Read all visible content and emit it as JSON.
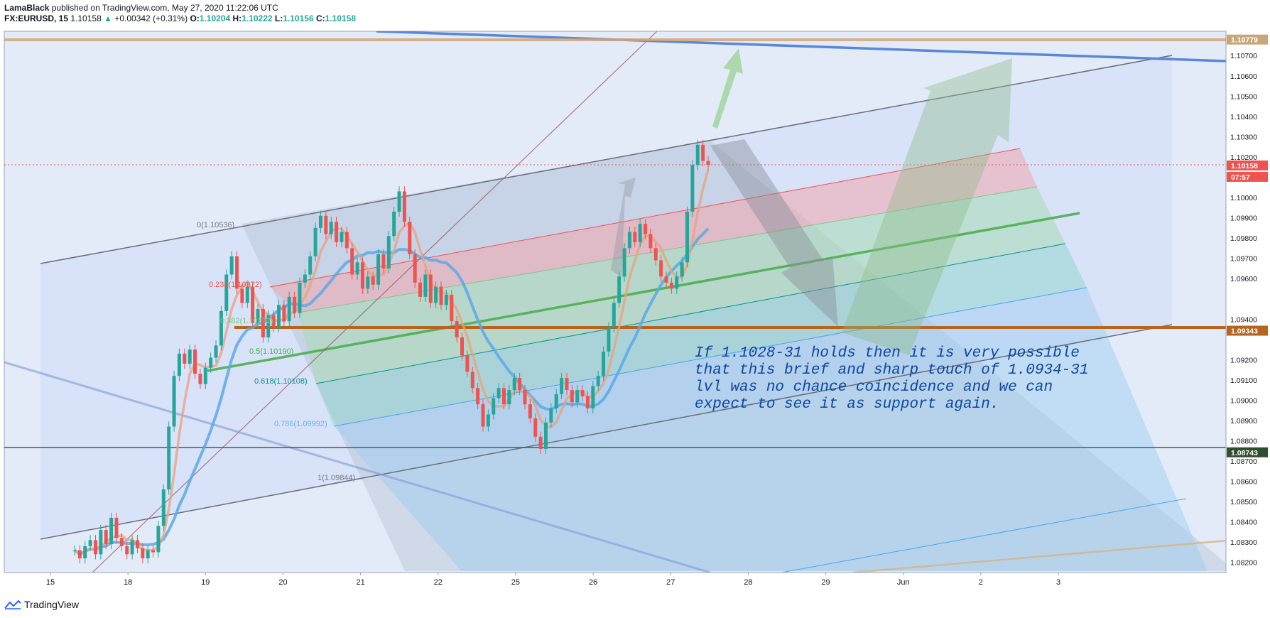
{
  "header": {
    "publisher": "LamaBlack",
    "published_text": "published on TradingView.com, May 27, 2020 11:22:06 UTC",
    "symbol": "FX:EURUSD, 15",
    "last": "1.10158",
    "arrow": "▲",
    "change": "+0.00342 (+0.31%)",
    "o_label": "O:",
    "o_value": "1.10204",
    "h_label": "H:",
    "h_value": "1.10222",
    "l_label": "L:",
    "l_value": "1.10156",
    "c_label": "C:",
    "c_value": "1.10158"
  },
  "footer": {
    "brand": "TradingView"
  },
  "annotation": {
    "lines": [
      "If 1.1028-31 holds then it is very possible",
      "that this brief and sharp touch of 1.0934-31",
      "lvl was no chance coincidence  and we can",
      "expect to see it as support again."
    ]
  },
  "colors": {
    "background": "#e3ebf8",
    "up_candle": "#26a69a",
    "down_candle": "#ef5350",
    "support_line": "#b5651d",
    "lower_line": "#4a6b4a",
    "top_line": "#d2a679",
    "price_label": "#ef5350",
    "annotation_text": "#0d47a1"
  },
  "chart_data": {
    "type": "candlestick",
    "symbol": "EURUSD",
    "timeframe": "15",
    "x_ticks": [
      "15",
      "18",
      "19",
      "20",
      "21",
      "22",
      "25",
      "26",
      "27",
      "28",
      "29",
      "Jun",
      "2",
      "3"
    ],
    "y_ticks": [
      "1.10700",
      "1.10600",
      "1.10500",
      "1.10400",
      "1.10300",
      "1.10200",
      "1.10000",
      "1.09900",
      "1.09800",
      "1.09700",
      "1.09600",
      "1.09400",
      "1.09200",
      "1.09100",
      "1.09000",
      "1.08900",
      "1.08800",
      "1.08700",
      "1.08600",
      "1.08500",
      "1.08400",
      "1.08300",
      "1.08200"
    ],
    "ylim": [
      1.0815,
      1.1082
    ],
    "price_labels": [
      {
        "value": "1.10779",
        "color": "#c9a57a"
      },
      {
        "value": "1.10158",
        "color": "#ef5350"
      },
      {
        "value": "07:57",
        "color": "#ef5350"
      },
      {
        "value": "1.09343",
        "color": "#b5651d"
      },
      {
        "value": "1.08743",
        "color": "#2e4f2e"
      }
    ],
    "horizontal_lines": [
      {
        "price": 1.10779,
        "color": "#d2a679"
      },
      {
        "price": 1.10158,
        "color": "#ef5350",
        "style": "dotted"
      },
      {
        "price": 1.09343,
        "color": "#b5651d"
      },
      {
        "price": 1.08743,
        "color": "#4a6b4a"
      }
    ],
    "fib_levels": [
      {
        "label": "0(1.10536)",
        "color": "#787b86"
      },
      {
        "label": "0.236(1.10372)",
        "color": "#ef5350"
      },
      {
        "label": "0.382(1.10272)",
        "color": "#81c784"
      },
      {
        "label": "0.5(1.10190)",
        "color": "#4caf50"
      },
      {
        "label": "0.618(1.10108)",
        "color": "#009688"
      },
      {
        "label": "0.786(1.09992)",
        "color": "#64b5f6"
      },
      {
        "label": "1(1.09844)",
        "color": "#787b86"
      }
    ],
    "series": [
      {
        "closes": [
          1.0826,
          1.0822,
          1.0828,
          1.0831,
          1.0824,
          1.0836,
          1.0829,
          1.0842,
          1.0832,
          1.0828,
          1.0824,
          1.0831,
          1.0827,
          1.0822,
          1.0826,
          1.0825,
          1.0838,
          1.0856,
          1.0887,
          1.0912,
          1.0923,
          1.0918,
          1.0925,
          1.0913,
          1.0908,
          1.0916,
          1.0921,
          1.0927,
          1.0944,
          1.0962,
          1.0971,
          1.0955,
          1.0948,
          1.0956,
          1.0938,
          1.0945,
          1.0931,
          1.0942,
          1.0936,
          1.0947,
          1.0939,
          1.0951,
          1.0943,
          1.0958,
          1.0962,
          1.0971,
          1.0985,
          1.0991,
          1.0982,
          1.0988,
          1.0978,
          1.0983,
          1.0975,
          1.0962,
          1.0968,
          1.0955,
          1.0961,
          1.0957,
          1.0972,
          1.0965,
          1.0981,
          1.0993,
          1.1003,
          1.0988,
          1.0972,
          1.0958,
          1.0951,
          1.0962,
          1.0948,
          1.0956,
          1.0947,
          1.0952,
          1.0939,
          1.0931,
          1.0922,
          1.0914,
          1.0906,
          1.0898,
          1.0887,
          1.0893,
          1.0901,
          1.0906,
          1.0898,
          1.0905,
          1.0911,
          1.0905,
          1.0898,
          1.0891,
          1.0882,
          1.0876,
          1.0889,
          1.0896,
          1.0903,
          1.0911,
          1.0905,
          1.0899,
          1.0905,
          1.0902,
          1.0896,
          1.0907,
          1.0912,
          1.0924,
          1.0936,
          1.0948,
          1.0961,
          1.0975,
          1.0983,
          1.0978,
          1.0987,
          1.0982,
          1.0975,
          1.0969,
          1.0961,
          1.0958,
          1.0955,
          1.0961,
          1.0968,
          1.0993,
          1.1016,
          1.1026,
          1.1018,
          1.1016
        ]
      }
    ],
    "moving_averages": [
      {
        "name": "",
        "color": "#5aa9e6"
      },
      {
        "name": "",
        "color": "#e8a27c"
      }
    ]
  }
}
